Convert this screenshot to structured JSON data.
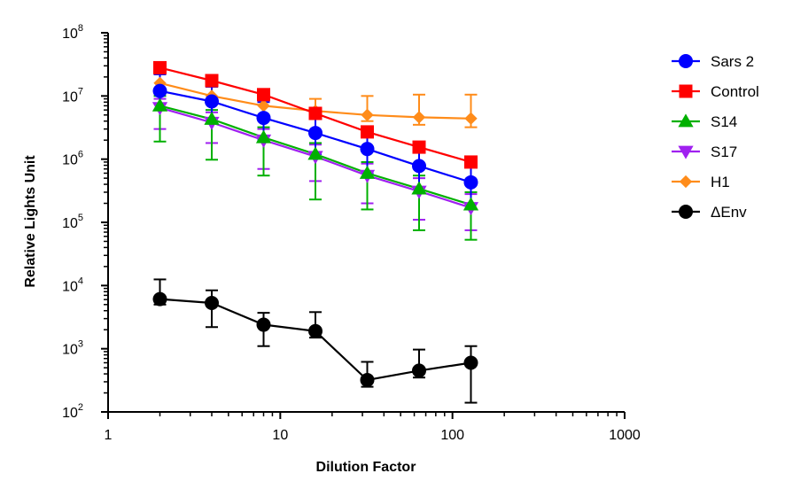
{
  "chart_data": {
    "type": "line",
    "xlabel": "Dilution Factor",
    "ylabel": "Relative Lights Unit",
    "x_scale": "log",
    "y_scale": "log",
    "xlim": [
      1,
      1000
    ],
    "ylim": [
      100,
      100000000
    ],
    "x_ticks": [
      {
        "value": 1,
        "label": "1"
      },
      {
        "value": 10,
        "label": "10"
      },
      {
        "value": 100,
        "label": "100"
      },
      {
        "value": 1000,
        "label": "1000"
      }
    ],
    "y_ticks": [
      {
        "value": 100,
        "base": "10",
        "exp": "2"
      },
      {
        "value": 1000,
        "base": "10",
        "exp": "3"
      },
      {
        "value": 10000,
        "base": "10",
        "exp": "4"
      },
      {
        "value": 100000,
        "base": "10",
        "exp": "5"
      },
      {
        "value": 1000000,
        "base": "10",
        "exp": "6"
      },
      {
        "value": 10000000,
        "base": "10",
        "exp": "7"
      },
      {
        "value": 100000000,
        "base": "10",
        "exp": "8"
      }
    ],
    "grid": false,
    "legend_position": "right",
    "x": [
      2,
      4,
      8,
      16,
      32,
      64,
      128
    ],
    "series": [
      {
        "name": "Sars 2",
        "color": "#0000ff",
        "marker": "circle",
        "values": [
          12000000,
          8200000,
          4500000,
          2600000,
          1450000,
          780000,
          430000
        ],
        "err_upper": [
          22000000,
          14000000,
          8000000,
          4800000,
          2500000,
          1300000,
          800000
        ],
        "err_lower": [
          6000000,
          4000000,
          2000000,
          1200000,
          600000,
          350000,
          200000
        ]
      },
      {
        "name": "Control",
        "color": "#ff0000",
        "marker": "square",
        "values": [
          28000000,
          17500000,
          10500000,
          5300000,
          2700000,
          1550000,
          900000
        ],
        "err_upper": [
          32000000,
          20000000,
          12000000,
          6000000,
          3100000,
          1800000,
          1000000
        ],
        "err_lower": [
          24000000,
          15000000,
          9000000,
          4500000,
          2300000,
          1300000,
          780000
        ]
      },
      {
        "name": "S14",
        "color": "#00b000",
        "marker": "triangle-up",
        "values": [
          7000000,
          4300000,
          2200000,
          1200000,
          600000,
          340000,
          190000
        ],
        "err_upper": [
          10000000,
          6000000,
          3200000,
          1800000,
          900000,
          550000,
          300000
        ],
        "err_lower": [
          1900000,
          980000,
          550000,
          230000,
          160000,
          75000,
          53000
        ]
      },
      {
        "name": "S17",
        "color": "#a020f0",
        "marker": "triangle-down",
        "values": [
          6500000,
          3800000,
          2000000,
          1100000,
          550000,
          310000,
          170000
        ],
        "err_upper": [
          9000000,
          5500000,
          3000000,
          1700000,
          850000,
          500000,
          280000
        ],
        "err_lower": [
          3000000,
          1800000,
          700000,
          450000,
          200000,
          110000,
          75000
        ]
      },
      {
        "name": "H1",
        "color": "#ff8c1a",
        "marker": "diamond",
        "values": [
          16000000,
          10000000,
          7000000,
          5800000,
          5000000,
          4600000,
          4400000
        ],
        "err_upper": [
          22000000,
          14000000,
          9500000,
          9000000,
          10000000,
          10500000,
          10500000
        ],
        "err_lower": [
          12000000,
          7500000,
          5000000,
          4500000,
          4000000,
          3500000,
          3200000
        ]
      },
      {
        "name": "ΔEnv",
        "color": "#000000",
        "marker": "circle",
        "values": [
          6100,
          5300,
          2400,
          1900,
          320,
          450,
          600
        ],
        "err_upper": [
          12500,
          8400,
          3700,
          3800,
          620,
          970,
          1100
        ],
        "err_lower": [
          5000,
          2200,
          1100,
          1500,
          250,
          350,
          140
        ]
      }
    ]
  }
}
